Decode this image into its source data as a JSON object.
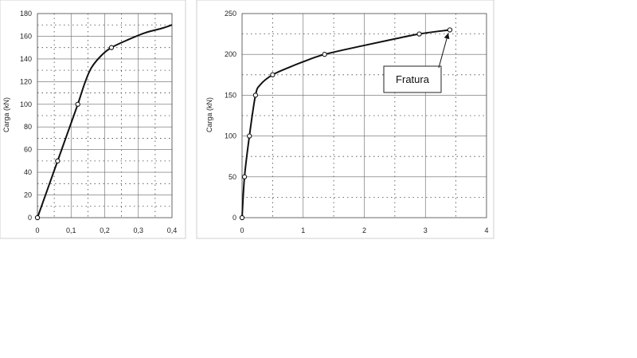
{
  "chart_data": [
    {
      "type": "line",
      "xlabel": "",
      "ylabel": "Carga (kN)",
      "xlim": [
        0,
        0.4
      ],
      "ylim": [
        0,
        180
      ],
      "x_ticks": [
        0,
        0.1,
        0.2,
        0.3,
        0.4
      ],
      "x_tick_labels": [
        "0",
        "0,1",
        "0,2",
        "0,3",
        "0,4"
      ],
      "y_ticks": [
        0,
        20,
        40,
        60,
        80,
        100,
        120,
        140,
        160,
        180
      ],
      "y_tick_labels": [
        "0",
        "20",
        "40",
        "60",
        "80",
        "100",
        "120",
        "140",
        "160",
        "180"
      ],
      "grid": true,
      "series": [
        {
          "curve": [
            [
              0,
              0
            ],
            [
              0.03,
              25
            ],
            [
              0.06,
              50
            ],
            [
              0.09,
              75
            ],
            [
              0.12,
              100
            ],
            [
              0.14,
              118
            ],
            [
              0.16,
              132
            ],
            [
              0.19,
              143
            ],
            [
              0.22,
              150
            ],
            [
              0.27,
              157
            ],
            [
              0.32,
              163
            ],
            [
              0.37,
              167
            ],
            [
              0.4,
              170
            ]
          ],
          "markers": [
            [
              0,
              0
            ],
            [
              0.06,
              50
            ],
            [
              0.12,
              100
            ],
            [
              0.22,
              150
            ]
          ]
        }
      ]
    },
    {
      "type": "line",
      "xlabel": "",
      "ylabel": "Carga (kN)",
      "xlim": [
        0,
        4
      ],
      "ylim": [
        0,
        250
      ],
      "x_ticks": [
        0,
        1,
        2,
        3,
        4
      ],
      "x_tick_labels": [
        "0",
        "1",
        "2",
        "3",
        "4"
      ],
      "y_ticks": [
        0,
        50,
        100,
        150,
        200,
        250
      ],
      "y_tick_labels": [
        "0",
        "50",
        "100",
        "150",
        "200",
        "250"
      ],
      "grid": true,
      "series": [
        {
          "curve": [
            [
              0,
              0
            ],
            [
              0.04,
              50
            ],
            [
              0.12,
              100
            ],
            [
              0.22,
              150
            ],
            [
              0.3,
              163
            ],
            [
              0.5,
              175
            ],
            [
              0.8,
              185
            ],
            [
              1.0,
              191
            ],
            [
              1.35,
              200
            ],
            [
              2.0,
              211
            ],
            [
              2.5,
              219
            ],
            [
              2.9,
              225
            ],
            [
              3.4,
              230
            ]
          ],
          "markers": [
            [
              0,
              0
            ],
            [
              0.04,
              50
            ],
            [
              0.12,
              100
            ],
            [
              0.22,
              150
            ],
            [
              0.5,
              175
            ],
            [
              1.35,
              200
            ],
            [
              2.9,
              225
            ],
            [
              3.4,
              230
            ]
          ]
        }
      ],
      "annotations": [
        {
          "text": "Fratura",
          "point": [
            3.4,
            230
          ]
        }
      ]
    }
  ]
}
